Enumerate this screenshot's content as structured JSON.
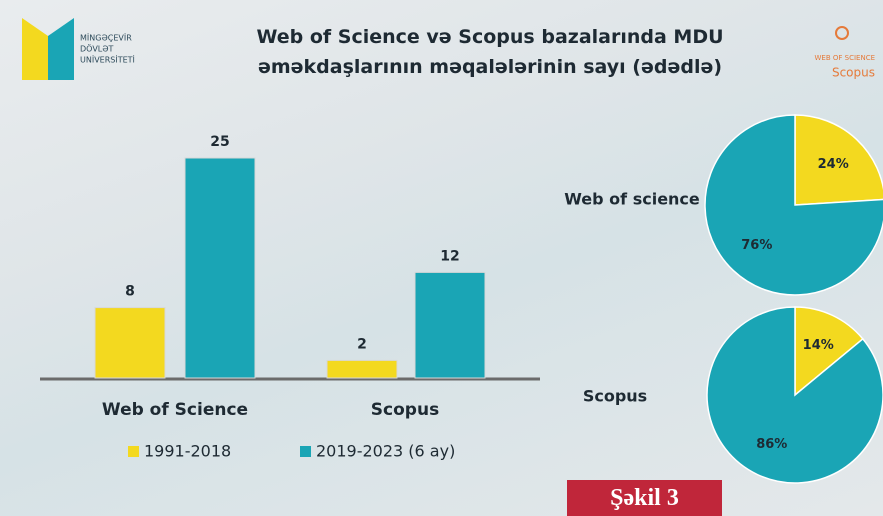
{
  "logo": {
    "lines": [
      "MİNGƏÇEVİR",
      "DÖVLƏT",
      "UNİVERSİTETİ"
    ]
  },
  "corner": {
    "wos": "WEB OF SCIENCE",
    "scopus": "Scopus"
  },
  "caption": "Şəkil 3",
  "chart_data": [
    {
      "type": "bar",
      "title": "Web of Science və Scopus bazalarında MDU əməkdaşlarının məqalələrinin sayı (ədədlə)",
      "categories": [
        "Web of Science",
        "Scopus"
      ],
      "series": [
        {
          "name": "1991-2018",
          "color": "#f3d91f",
          "values": [
            8,
            2
          ]
        },
        {
          "name": "2019-2023 (6 ay)",
          "color": "#1aa5b5",
          "values": [
            25,
            12
          ]
        }
      ]
    },
    {
      "type": "pie",
      "title": "Web of science",
      "values": [
        24,
        76
      ],
      "value_labels": [
        "24%",
        "76%"
      ],
      "colors": [
        "#f3d91f",
        "#1aa5b5"
      ]
    },
    {
      "type": "pie",
      "title": "Scopus",
      "values": [
        14,
        86
      ],
      "value_labels": [
        "14%",
        "86%"
      ],
      "colors": [
        "#f3d91f",
        "#1aa5b5"
      ]
    }
  ]
}
